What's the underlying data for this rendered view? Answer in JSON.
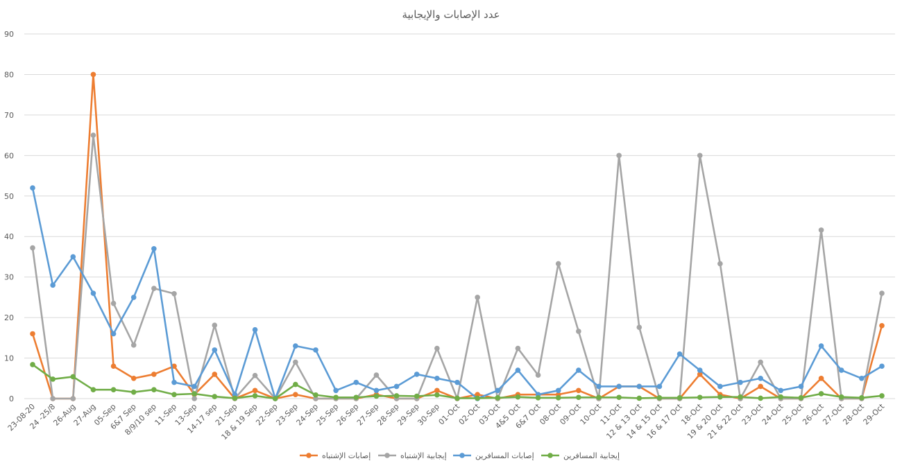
{
  "chart_data": {
    "type": "line",
    "title": "عدد الإصابات والإيجابية",
    "xlabel": "",
    "ylabel": "",
    "ylim": [
      0,
      90
    ],
    "yticks": [
      0,
      10,
      20,
      30,
      40,
      50,
      60,
      70,
      80,
      90
    ],
    "grid": true,
    "legend_position": "bottom",
    "categories": [
      "23-08-20",
      "24 -25/8",
      "26-Aug",
      "27-Aug",
      "05-Sep",
      "6&7 Sep",
      "8/9/10 sep",
      "11-Sep",
      "13-Sep",
      "14-17 sep",
      "21-Sep",
      "18 & 19 Sep",
      "22-Sep",
      "23-Sep",
      "24-Sep",
      "25-Sep",
      "26-Sep",
      "27-Sep",
      "28-Sep",
      "29-Sep",
      "30-Sep",
      "01-Oct",
      "02-Oct",
      "03-Oct",
      "4&5 Oct",
      "6&7 Oct",
      "08-Oct",
      "09-Oct",
      "10-Oct",
      "11-Oct",
      "12 & 13 Oct",
      "14 & 15 Oct",
      "16 & 17 Oct",
      "18-Oct",
      "19 & 20 Oct",
      "21 & 22 Oct",
      "23-Oct",
      "24-Oct",
      "25-Oct",
      "26-Oct",
      "27-Oct",
      "28-Oct",
      "29-Oct"
    ],
    "series": [
      {
        "name": "إصابات الإشتباه",
        "color": "#ed7d31",
        "values": [
          16,
          0,
          0,
          80,
          8,
          5,
          6,
          8,
          1,
          6,
          0,
          2,
          0,
          1,
          0,
          0,
          0,
          1,
          0,
          0,
          2,
          0,
          1,
          0,
          1,
          1,
          1,
          2,
          0,
          3,
          3,
          0,
          0,
          6,
          1,
          0,
          3,
          0,
          0,
          5,
          0,
          0,
          18
        ]
      },
      {
        "name": "إيجابية الإشتباه",
        "color": "#a5a5a5",
        "values": [
          37.2,
          0,
          0,
          65,
          23.5,
          13.2,
          27.2,
          25.9,
          0,
          18.1,
          0,
          5.7,
          0,
          9,
          0,
          0,
          0,
          5.8,
          0,
          0,
          12.4,
          0,
          25,
          0,
          12.4,
          5.8,
          33.3,
          16.6,
          0,
          60,
          17.6,
          0,
          0,
          60,
          33.3,
          0,
          9,
          0,
          0,
          41.6,
          0,
          0,
          26
        ]
      },
      {
        "name": "إصابات المسافرين",
        "color": "#5b9bd5",
        "values": [
          52,
          28,
          35,
          26,
          16,
          25,
          37,
          4,
          3,
          12,
          1,
          17,
          0,
          13,
          12,
          2,
          4,
          2,
          3,
          6,
          5,
          4,
          0,
          2,
          7,
          1,
          2,
          7,
          3,
          3,
          3,
          3,
          11,
          7,
          3,
          4,
          5,
          2,
          3,
          13,
          7,
          5,
          8
        ]
      },
      {
        "name": "إيجابية المسافرين",
        "color": "#70ad47",
        "values": [
          8.4,
          4.8,
          5.4,
          2.2,
          2.2,
          1.6,
          2.2,
          1,
          1.2,
          0.5,
          0.1,
          0.7,
          0,
          3.5,
          0.9,
          0.3,
          0.3,
          0.6,
          0.7,
          0.6,
          0.9,
          0.1,
          0.1,
          0.2,
          0.4,
          0.2,
          0.2,
          0.3,
          0.3,
          0.3,
          0.1,
          0.2,
          0.2,
          0.3,
          0.4,
          0.4,
          0.1,
          0.4,
          0.2,
          1.2,
          0.4,
          0.2,
          0.7
        ]
      }
    ]
  }
}
